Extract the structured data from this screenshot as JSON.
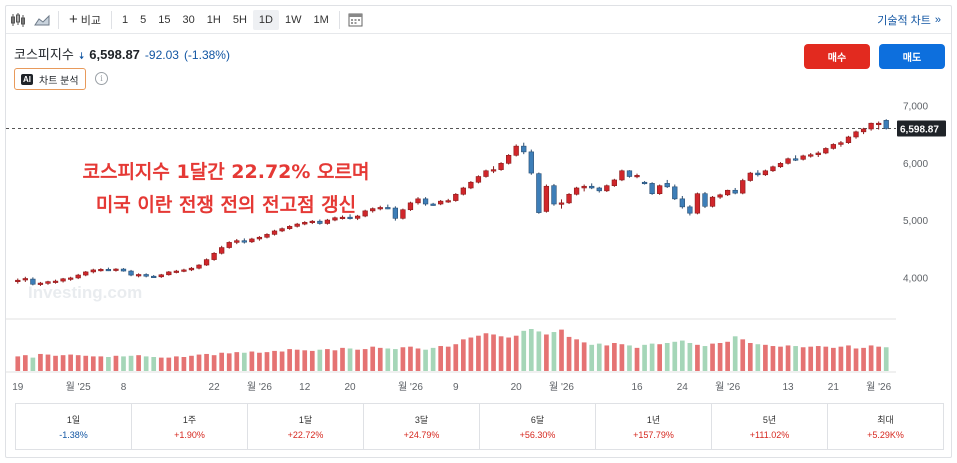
{
  "toolbar": {
    "compare_label": "비교",
    "intervals": [
      "1",
      "5",
      "15",
      "30",
      "1H",
      "5H",
      "1D",
      "1W",
      "1M"
    ],
    "active_interval": "1D",
    "tech_chart_label": "기술적 차트",
    "tech_chart_chevron": "»"
  },
  "header": {
    "name": "코스피지수",
    "price": "6,598.87",
    "change": "-92.03",
    "change_pct": "(-1.38%)",
    "ai_badge": "AI",
    "ai_label": "차트 분석",
    "info_glyph": "i",
    "buy_label": "매수",
    "sell_label": "매도"
  },
  "chart_data": {
    "type": "candlestick",
    "title": "",
    "annotation_lines": [
      "코스피지수 1달간 22.72% 오르며",
      "미국 이란 전쟁 전의 전고점 갱신"
    ],
    "watermark": "Investing.com",
    "ylim": [
      3500,
      7200
    ],
    "yticks": [
      {
        "v": 7000,
        "label": "7,000"
      },
      {
        "v": 6000,
        "label": "6,000"
      },
      {
        "v": 5000,
        "label": "5,000"
      },
      {
        "v": 4000,
        "label": "4,000"
      }
    ],
    "last_price": 6598.87,
    "last_price_label": "6,598.87",
    "xlabels": [
      "19",
      "월 '25",
      "8",
      "22",
      "월 '26",
      "12",
      "20",
      "월 '26",
      "9",
      "20",
      "월 '26",
      "16",
      "24",
      "월 '26",
      "13",
      "21",
      "월 '26"
    ],
    "xlabel_index": [
      0,
      8,
      14,
      26,
      32,
      38,
      44,
      52,
      58,
      66,
      72,
      82,
      88,
      94,
      102,
      108,
      114
    ],
    "candles": [
      {
        "o": 3930,
        "h": 3980,
        "l": 3890,
        "c": 3950
      },
      {
        "o": 3960,
        "h": 4010,
        "l": 3920,
        "c": 3980
      },
      {
        "o": 3970,
        "h": 4000,
        "l": 3860,
        "c": 3880
      },
      {
        "o": 3880,
        "h": 3920,
        "l": 3850,
        "c": 3900
      },
      {
        "o": 3895,
        "h": 3940,
        "l": 3870,
        "c": 3925
      },
      {
        "o": 3920,
        "h": 3960,
        "l": 3890,
        "c": 3935
      },
      {
        "o": 3935,
        "h": 3990,
        "l": 3910,
        "c": 3975
      },
      {
        "o": 3970,
        "h": 4010,
        "l": 3940,
        "c": 3990
      },
      {
        "o": 3990,
        "h": 4060,
        "l": 3970,
        "c": 4040
      },
      {
        "o": 4040,
        "h": 4110,
        "l": 4020,
        "c": 4095
      },
      {
        "o": 4095,
        "h": 4150,
        "l": 4070,
        "c": 4130
      },
      {
        "o": 4130,
        "h": 4160,
        "l": 4100,
        "c": 4140
      },
      {
        "o": 4140,
        "h": 4170,
        "l": 4110,
        "c": 4120
      },
      {
        "o": 4125,
        "h": 4160,
        "l": 4100,
        "c": 4145
      },
      {
        "o": 4145,
        "h": 4160,
        "l": 4100,
        "c": 4110
      },
      {
        "o": 4110,
        "h": 4130,
        "l": 4020,
        "c": 4040
      },
      {
        "o": 4040,
        "h": 4070,
        "l": 4000,
        "c": 4050
      },
      {
        "o": 4050,
        "h": 4070,
        "l": 4000,
        "c": 4020
      },
      {
        "o": 4020,
        "h": 4040,
        "l": 3990,
        "c": 4000
      },
      {
        "o": 4010,
        "h": 4060,
        "l": 3990,
        "c": 4045
      },
      {
        "o": 4045,
        "h": 4110,
        "l": 4030,
        "c": 4095
      },
      {
        "o": 4095,
        "h": 4130,
        "l": 4070,
        "c": 4110
      },
      {
        "o": 4110,
        "h": 4150,
        "l": 4090,
        "c": 4130
      },
      {
        "o": 4130,
        "h": 4180,
        "l": 4110,
        "c": 4160
      },
      {
        "o": 4160,
        "h": 4230,
        "l": 4140,
        "c": 4215
      },
      {
        "o": 4215,
        "h": 4330,
        "l": 4200,
        "c": 4310
      },
      {
        "o": 4310,
        "h": 4440,
        "l": 4290,
        "c": 4420
      },
      {
        "o": 4420,
        "h": 4550,
        "l": 4400,
        "c": 4520
      },
      {
        "o": 4520,
        "h": 4630,
        "l": 4500,
        "c": 4610
      },
      {
        "o": 4610,
        "h": 4670,
        "l": 4580,
        "c": 4640
      },
      {
        "o": 4640,
        "h": 4680,
        "l": 4590,
        "c": 4620
      },
      {
        "o": 4620,
        "h": 4690,
        "l": 4600,
        "c": 4670
      },
      {
        "o": 4670,
        "h": 4720,
        "l": 4640,
        "c": 4700
      },
      {
        "o": 4700,
        "h": 4770,
        "l": 4680,
        "c": 4750
      },
      {
        "o": 4750,
        "h": 4830,
        "l": 4730,
        "c": 4810
      },
      {
        "o": 4810,
        "h": 4870,
        "l": 4790,
        "c": 4850
      },
      {
        "o": 4850,
        "h": 4910,
        "l": 4830,
        "c": 4890
      },
      {
        "o": 4890,
        "h": 4950,
        "l": 4870,
        "c": 4930
      },
      {
        "o": 4930,
        "h": 4980,
        "l": 4910,
        "c": 4960
      },
      {
        "o": 4960,
        "h": 5000,
        "l": 4930,
        "c": 4980
      },
      {
        "o": 4980,
        "h": 5010,
        "l": 4920,
        "c": 4940
      },
      {
        "o": 4940,
        "h": 5020,
        "l": 4920,
        "c": 5000
      },
      {
        "o": 5000,
        "h": 5060,
        "l": 4980,
        "c": 5040
      },
      {
        "o": 5040,
        "h": 5080,
        "l": 5010,
        "c": 5050
      },
      {
        "o": 5050,
        "h": 5100,
        "l": 5010,
        "c": 5030
      },
      {
        "o": 5030,
        "h": 5090,
        "l": 5000,
        "c": 5070
      },
      {
        "o": 5070,
        "h": 5180,
        "l": 5050,
        "c": 5160
      },
      {
        "o": 5160,
        "h": 5220,
        "l": 5130,
        "c": 5200
      },
      {
        "o": 5200,
        "h": 5250,
        "l": 5170,
        "c": 5220
      },
      {
        "o": 5220,
        "h": 5270,
        "l": 5190,
        "c": 5210
      },
      {
        "o": 5210,
        "h": 5240,
        "l": 4990,
        "c": 5030
      },
      {
        "o": 5030,
        "h": 5200,
        "l": 5010,
        "c": 5180
      },
      {
        "o": 5180,
        "h": 5320,
        "l": 5160,
        "c": 5300
      },
      {
        "o": 5300,
        "h": 5400,
        "l": 5270,
        "c": 5370
      },
      {
        "o": 5370,
        "h": 5400,
        "l": 5250,
        "c": 5280
      },
      {
        "o": 5280,
        "h": 5300,
        "l": 5250,
        "c": 5270
      },
      {
        "o": 5280,
        "h": 5350,
        "l": 5260,
        "c": 5330
      },
      {
        "o": 5330,
        "h": 5370,
        "l": 5300,
        "c": 5340
      },
      {
        "o": 5340,
        "h": 5470,
        "l": 5320,
        "c": 5450
      },
      {
        "o": 5450,
        "h": 5580,
        "l": 5430,
        "c": 5560
      },
      {
        "o": 5560,
        "h": 5680,
        "l": 5540,
        "c": 5660
      },
      {
        "o": 5660,
        "h": 5780,
        "l": 5640,
        "c": 5760
      },
      {
        "o": 5760,
        "h": 5880,
        "l": 5740,
        "c": 5860
      },
      {
        "o": 5860,
        "h": 5940,
        "l": 5820,
        "c": 5880
      },
      {
        "o": 5880,
        "h": 6010,
        "l": 5860,
        "c": 5990
      },
      {
        "o": 5990,
        "h": 6150,
        "l": 5970,
        "c": 6130
      },
      {
        "o": 6130,
        "h": 6320,
        "l": 6110,
        "c": 6290
      },
      {
        "o": 6290,
        "h": 6350,
        "l": 6150,
        "c": 6190
      },
      {
        "o": 6190,
        "h": 6230,
        "l": 5790,
        "c": 5820
      },
      {
        "o": 5810,
        "h": 5830,
        "l": 5110,
        "c": 5130
      },
      {
        "o": 5150,
        "h": 5620,
        "l": 5130,
        "c": 5590
      },
      {
        "o": 5600,
        "h": 5630,
        "l": 5250,
        "c": 5280
      },
      {
        "o": 5280,
        "h": 5360,
        "l": 5200,
        "c": 5300
      },
      {
        "o": 5300,
        "h": 5470,
        "l": 5280,
        "c": 5450
      },
      {
        "o": 5450,
        "h": 5580,
        "l": 5430,
        "c": 5560
      },
      {
        "o": 5560,
        "h": 5620,
        "l": 5500,
        "c": 5590
      },
      {
        "o": 5590,
        "h": 5640,
        "l": 5540,
        "c": 5560
      },
      {
        "o": 5560,
        "h": 5580,
        "l": 5480,
        "c": 5510
      },
      {
        "o": 5510,
        "h": 5620,
        "l": 5490,
        "c": 5600
      },
      {
        "o": 5600,
        "h": 5720,
        "l": 5580,
        "c": 5700
      },
      {
        "o": 5700,
        "h": 5880,
        "l": 5680,
        "c": 5860
      },
      {
        "o": 5860,
        "h": 5870,
        "l": 5740,
        "c": 5760
      },
      {
        "o": 5760,
        "h": 5810,
        "l": 5730,
        "c": 5780
      },
      {
        "o": 5660,
        "h": 5680,
        "l": 5620,
        "c": 5640
      },
      {
        "o": 5640,
        "h": 5660,
        "l": 5440,
        "c": 5460
      },
      {
        "o": 5460,
        "h": 5620,
        "l": 5440,
        "c": 5600
      },
      {
        "o": 5640,
        "h": 5700,
        "l": 5560,
        "c": 5580
      },
      {
        "o": 5580,
        "h": 5620,
        "l": 5350,
        "c": 5370
      },
      {
        "o": 5370,
        "h": 5420,
        "l": 5200,
        "c": 5230
      },
      {
        "o": 5230,
        "h": 5260,
        "l": 5080,
        "c": 5120
      },
      {
        "o": 5120,
        "h": 5480,
        "l": 5100,
        "c": 5460
      },
      {
        "o": 5460,
        "h": 5490,
        "l": 5210,
        "c": 5240
      },
      {
        "o": 5240,
        "h": 5420,
        "l": 5220,
        "c": 5400
      },
      {
        "o": 5400,
        "h": 5460,
        "l": 5370,
        "c": 5440
      },
      {
        "o": 5440,
        "h": 5530,
        "l": 5420,
        "c": 5520
      },
      {
        "o": 5520,
        "h": 5560,
        "l": 5450,
        "c": 5470
      },
      {
        "o": 5470,
        "h": 5720,
        "l": 5450,
        "c": 5690
      },
      {
        "o": 5690,
        "h": 5840,
        "l": 5670,
        "c": 5820
      },
      {
        "o": 5820,
        "h": 5870,
        "l": 5760,
        "c": 5790
      },
      {
        "o": 5790,
        "h": 5880,
        "l": 5770,
        "c": 5860
      },
      {
        "o": 5860,
        "h": 5950,
        "l": 5840,
        "c": 5930
      },
      {
        "o": 5930,
        "h": 6010,
        "l": 5910,
        "c": 5990
      },
      {
        "o": 5990,
        "h": 6090,
        "l": 5970,
        "c": 6070
      },
      {
        "o": 6070,
        "h": 6130,
        "l": 6030,
        "c": 6060
      },
      {
        "o": 6060,
        "h": 6140,
        "l": 6040,
        "c": 6120
      },
      {
        "o": 6120,
        "h": 6170,
        "l": 6090,
        "c": 6140
      },
      {
        "o": 6140,
        "h": 6200,
        "l": 6100,
        "c": 6170
      },
      {
        "o": 6170,
        "h": 6270,
        "l": 6150,
        "c": 6250
      },
      {
        "o": 6250,
        "h": 6340,
        "l": 6230,
        "c": 6320
      },
      {
        "o": 6320,
        "h": 6380,
        "l": 6280,
        "c": 6350
      },
      {
        "o": 6350,
        "h": 6470,
        "l": 6330,
        "c": 6450
      },
      {
        "o": 6450,
        "h": 6560,
        "l": 6420,
        "c": 6540
      },
      {
        "o": 6540,
        "h": 6610,
        "l": 6500,
        "c": 6590
      },
      {
        "o": 6590,
        "h": 6700,
        "l": 6560,
        "c": 6690
      },
      {
        "o": 6690,
        "h": 6720,
        "l": 6580,
        "c": 6690
      },
      {
        "o": 6740,
        "h": 6760,
        "l": 6580,
        "c": 6599
      }
    ],
    "volume": [
      24,
      26,
      22,
      28,
      27,
      25,
      26,
      27,
      26,
      25,
      24,
      24,
      23,
      25,
      24,
      25,
      26,
      24,
      23,
      22,
      22,
      24,
      23,
      25,
      27,
      28,
      26,
      30,
      29,
      31,
      30,
      32,
      30,
      31,
      33,
      32,
      36,
      35,
      34,
      33,
      35,
      36,
      34,
      38,
      37,
      35,
      36,
      40,
      38,
      37,
      36,
      39,
      40,
      37,
      35,
      38,
      41,
      40,
      44,
      52,
      55,
      58,
      62,
      60,
      57,
      55,
      58,
      66,
      69,
      65,
      60,
      64,
      68,
      56,
      52,
      47,
      43,
      45,
      42,
      46,
      44,
      42,
      38,
      43,
      45,
      44,
      46,
      48,
      50,
      46,
      43,
      41,
      45,
      46,
      48,
      57,
      52,
      46,
      44,
      43,
      41,
      40,
      42,
      41,
      39,
      40,
      41,
      40,
      38,
      40,
      42,
      37,
      38,
      42,
      40,
      39
    ]
  },
  "performance": [
    {
      "label": "1일",
      "value": "-1.38%",
      "dir": "neg"
    },
    {
      "label": "1주",
      "value": "+1.90%",
      "dir": "pos"
    },
    {
      "label": "1달",
      "value": "+22.72%",
      "dir": "pos"
    },
    {
      "label": "3달",
      "value": "+24.79%",
      "dir": "pos"
    },
    {
      "label": "6달",
      "value": "+56.30%",
      "dir": "pos"
    },
    {
      "label": "1년",
      "value": "+157.79%",
      "dir": "pos"
    },
    {
      "label": "5년",
      "value": "+111.02%",
      "dir": "pos"
    },
    {
      "label": "최대",
      "value": "+5.29K%",
      "dir": "pos"
    }
  ],
  "colors": {
    "up": "#d0262b",
    "down": "#3d7eb8",
    "up_vol": "#e57373",
    "down_vol": "#a5d6b8",
    "annotation": "#e53935",
    "buy": "#e22a1f",
    "sell": "#0d6fdd"
  }
}
